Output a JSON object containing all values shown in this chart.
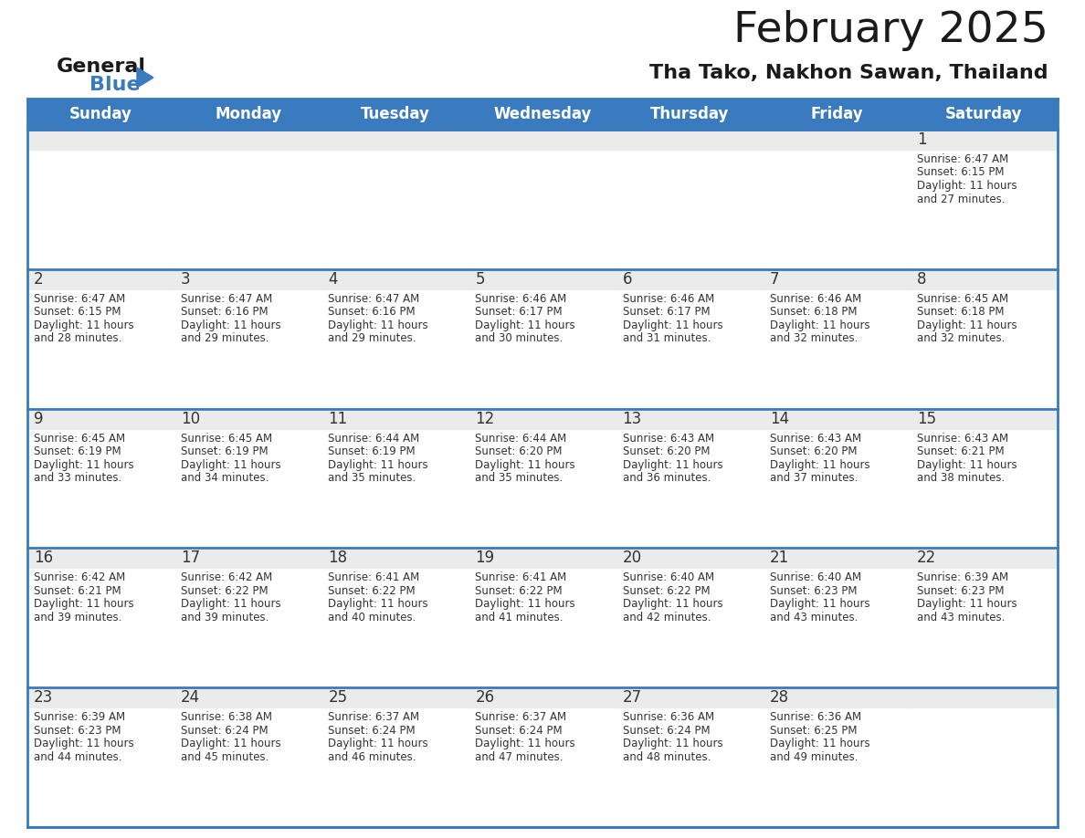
{
  "title": "February 2025",
  "subtitle": "Tha Tako, Nakhon Sawan, Thailand",
  "header_color": "#3a7abf",
  "header_text_color": "#ffffff",
  "day_number_color": "#333333",
  "text_color": "#333333",
  "border_color": "#3a7abf",
  "row_top_bg": "#ebebeb",
  "row_body_bg": "#ffffff",
  "days_of_week": [
    "Sunday",
    "Monday",
    "Tuesday",
    "Wednesday",
    "Thursday",
    "Friday",
    "Saturday"
  ],
  "weeks": [
    [
      {
        "day": null
      },
      {
        "day": null
      },
      {
        "day": null
      },
      {
        "day": null
      },
      {
        "day": null
      },
      {
        "day": null
      },
      {
        "day": 1,
        "sunrise": "6:47 AM",
        "sunset": "6:15 PM",
        "daylight": "11 hours and 27 minutes."
      }
    ],
    [
      {
        "day": 2,
        "sunrise": "6:47 AM",
        "sunset": "6:15 PM",
        "daylight": "11 hours and 28 minutes."
      },
      {
        "day": 3,
        "sunrise": "6:47 AM",
        "sunset": "6:16 PM",
        "daylight": "11 hours and 29 minutes."
      },
      {
        "day": 4,
        "sunrise": "6:47 AM",
        "sunset": "6:16 PM",
        "daylight": "11 hours and 29 minutes."
      },
      {
        "day": 5,
        "sunrise": "6:46 AM",
        "sunset": "6:17 PM",
        "daylight": "11 hours and 30 minutes."
      },
      {
        "day": 6,
        "sunrise": "6:46 AM",
        "sunset": "6:17 PM",
        "daylight": "11 hours and 31 minutes."
      },
      {
        "day": 7,
        "sunrise": "6:46 AM",
        "sunset": "6:18 PM",
        "daylight": "11 hours and 32 minutes."
      },
      {
        "day": 8,
        "sunrise": "6:45 AM",
        "sunset": "6:18 PM",
        "daylight": "11 hours and 32 minutes."
      }
    ],
    [
      {
        "day": 9,
        "sunrise": "6:45 AM",
        "sunset": "6:19 PM",
        "daylight": "11 hours and 33 minutes."
      },
      {
        "day": 10,
        "sunrise": "6:45 AM",
        "sunset": "6:19 PM",
        "daylight": "11 hours and 34 minutes."
      },
      {
        "day": 11,
        "sunrise": "6:44 AM",
        "sunset": "6:19 PM",
        "daylight": "11 hours and 35 minutes."
      },
      {
        "day": 12,
        "sunrise": "6:44 AM",
        "sunset": "6:20 PM",
        "daylight": "11 hours and 35 minutes."
      },
      {
        "day": 13,
        "sunrise": "6:43 AM",
        "sunset": "6:20 PM",
        "daylight": "11 hours and 36 minutes."
      },
      {
        "day": 14,
        "sunrise": "6:43 AM",
        "sunset": "6:20 PM",
        "daylight": "11 hours and 37 minutes."
      },
      {
        "day": 15,
        "sunrise": "6:43 AM",
        "sunset": "6:21 PM",
        "daylight": "11 hours and 38 minutes."
      }
    ],
    [
      {
        "day": 16,
        "sunrise": "6:42 AM",
        "sunset": "6:21 PM",
        "daylight": "11 hours and 39 minutes."
      },
      {
        "day": 17,
        "sunrise": "6:42 AM",
        "sunset": "6:22 PM",
        "daylight": "11 hours and 39 minutes."
      },
      {
        "day": 18,
        "sunrise": "6:41 AM",
        "sunset": "6:22 PM",
        "daylight": "11 hours and 40 minutes."
      },
      {
        "day": 19,
        "sunrise": "6:41 AM",
        "sunset": "6:22 PM",
        "daylight": "11 hours and 41 minutes."
      },
      {
        "day": 20,
        "sunrise": "6:40 AM",
        "sunset": "6:22 PM",
        "daylight": "11 hours and 42 minutes."
      },
      {
        "day": 21,
        "sunrise": "6:40 AM",
        "sunset": "6:23 PM",
        "daylight": "11 hours and 43 minutes."
      },
      {
        "day": 22,
        "sunrise": "6:39 AM",
        "sunset": "6:23 PM",
        "daylight": "11 hours and 43 minutes."
      }
    ],
    [
      {
        "day": 23,
        "sunrise": "6:39 AM",
        "sunset": "6:23 PM",
        "daylight": "11 hours and 44 minutes."
      },
      {
        "day": 24,
        "sunrise": "6:38 AM",
        "sunset": "6:24 PM",
        "daylight": "11 hours and 45 minutes."
      },
      {
        "day": 25,
        "sunrise": "6:37 AM",
        "sunset": "6:24 PM",
        "daylight": "11 hours and 46 minutes."
      },
      {
        "day": 26,
        "sunrise": "6:37 AM",
        "sunset": "6:24 PM",
        "daylight": "11 hours and 47 minutes."
      },
      {
        "day": 27,
        "sunrise": "6:36 AM",
        "sunset": "6:24 PM",
        "daylight": "11 hours and 48 minutes."
      },
      {
        "day": 28,
        "sunrise": "6:36 AM",
        "sunset": "6:25 PM",
        "daylight": "11 hours and 49 minutes."
      },
      {
        "day": null
      }
    ]
  ]
}
